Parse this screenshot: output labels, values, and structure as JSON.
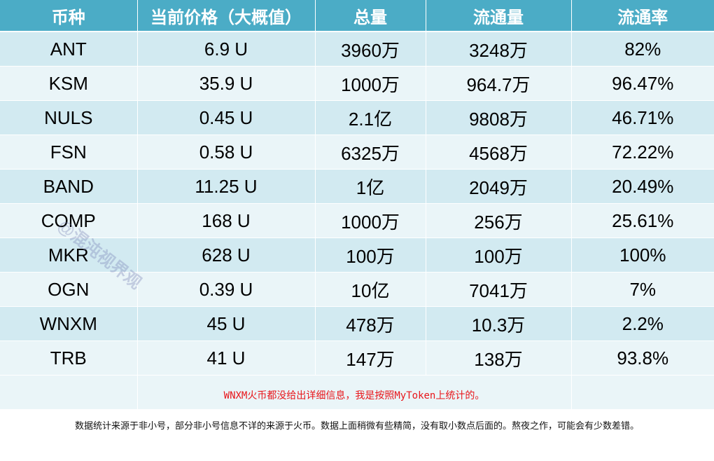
{
  "table": {
    "headers": [
      "币种",
      "当前价格（大概值）",
      "总量",
      "流通量",
      "流通率"
    ],
    "rows": [
      [
        "ANT",
        "6.9 U",
        "3960万",
        "3248万",
        "82%"
      ],
      [
        "KSM",
        "35.9 U",
        "1000万",
        "964.7万",
        "96.47%"
      ],
      [
        "NULS",
        "0.45 U",
        "2.1亿",
        "9808万",
        "46.71%"
      ],
      [
        "FSN",
        "0.58 U",
        "6325万",
        "4568万",
        "72.22%"
      ],
      [
        "BAND",
        "11.25 U",
        "1亿",
        "2049万",
        "20.49%"
      ],
      [
        "COMP",
        "168 U",
        "1000万",
        "256万",
        "25.61%"
      ],
      [
        "MKR",
        "628 U",
        "100万",
        "100万",
        "100%"
      ],
      [
        "OGN",
        "0.39 U",
        "10亿",
        "7041万",
        "7%"
      ],
      [
        "WNXM",
        "45 U",
        "478万",
        "10.3万",
        "2.2%"
      ],
      [
        "TRB",
        "41 U",
        "147万",
        "138万",
        "93.8%"
      ]
    ],
    "note": "WNXM火币都没给出详细信息，我是按照MyToken上统计的。"
  },
  "footer_text": "数据统计来源于非小号，部分非小号信息不详的来源于火币。数据上面稍微有些精简，没有取小数点后面的。熬夜之作，可能会有少数差错。",
  "watermark_text": "@混沌视界观",
  "colors": {
    "header_bg": "#4bacc6",
    "row_dark": "#d2eaf1",
    "row_light": "#eaf5f8",
    "note_red": "#e8161b"
  }
}
